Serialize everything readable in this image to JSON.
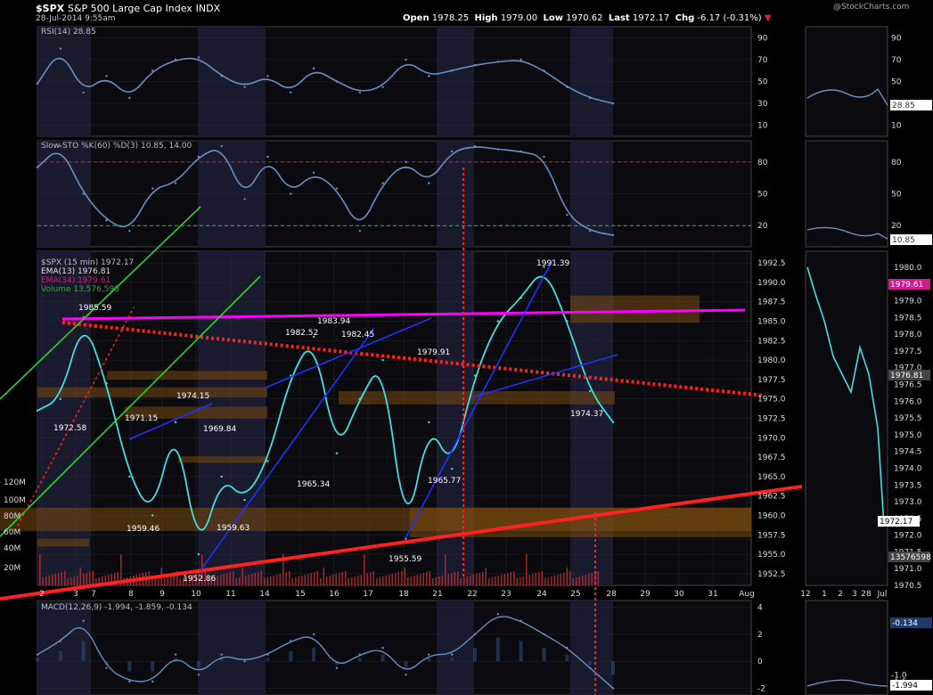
{
  "header": {
    "symbol": "$SPX",
    "name": "S&P 500 Large Cap Index",
    "exchange": "INDX",
    "timestamp": "28-Jul-2014 9:55am",
    "open_label": "Open",
    "open": "1978.25",
    "high_label": "High",
    "high": "1979.00",
    "low_label": "Low",
    "low": "1970.62",
    "last_label": "Last",
    "last": "1972.17",
    "chg_label": "Chg",
    "chg": "-6.17 (-0.31%)",
    "watermark": "@StockCharts.com"
  },
  "colors": {
    "background": "#000000",
    "panel_bg": "#0a0a0f",
    "shade": "#1a1a2e",
    "grid": "#2a2a2a",
    "price": "#40e0e0",
    "rsi": "#6a8fbf",
    "ema13": "#e0e0e0",
    "ema34": "#d01c8b",
    "volume": "#c03030",
    "resistance": "#ff00ff",
    "support": "#ff2020",
    "channel": "#2030ff",
    "green": "#30d030",
    "zone": "#7a4a10"
  },
  "chart_data": [
    {
      "type": "line",
      "panel": "rsi",
      "title": "RSI(14) 28.85",
      "ylim": [
        0,
        100
      ],
      "yticks": [
        10,
        30,
        50,
        70,
        90
      ],
      "last_value": "28.85",
      "x": [
        0,
        7,
        14,
        21,
        28,
        35,
        42,
        49,
        56,
        63,
        70,
        77,
        84,
        91,
        98,
        105,
        112,
        119,
        126,
        133,
        140,
        147,
        154,
        161,
        168,
        175
      ],
      "values": [
        48,
        80,
        40,
        55,
        35,
        60,
        70,
        72,
        55,
        45,
        55,
        40,
        62,
        50,
        40,
        45,
        70,
        55,
        60,
        65,
        68,
        70,
        60,
        45,
        35,
        30
      ]
    },
    {
      "type": "line",
      "panel": "stochastic",
      "title": "Slow STO %K(60) %D(3) 10.85, 14.00",
      "ylim": [
        0,
        100
      ],
      "yticks": [
        20,
        50,
        80
      ],
      "last_values": [
        "10.85",
        "14.00"
      ],
      "x": [
        0,
        7,
        14,
        21,
        28,
        35,
        42,
        49,
        56,
        63,
        70,
        77,
        84,
        91,
        98,
        105,
        112,
        119,
        126,
        133,
        140,
        147,
        154,
        161,
        168,
        175
      ],
      "values": [
        75,
        95,
        50,
        25,
        15,
        55,
        60,
        85,
        95,
        45,
        85,
        50,
        70,
        55,
        15,
        60,
        80,
        60,
        90,
        95,
        92,
        90,
        85,
        30,
        15,
        11
      ]
    },
    {
      "type": "line",
      "panel": "price",
      "title": "$SPX (15 min) 1972.17",
      "legend": [
        "EMA(13) 1976.81",
        "EMA(34) 1979.61",
        "Volume 13,576,598"
      ],
      "ylim": [
        1951,
        1994
      ],
      "yticks": [
        1952.5,
        1955.0,
        1957.5,
        1960.0,
        1962.5,
        1965.0,
        1967.5,
        1970.0,
        1972.5,
        1975.0,
        1977.5,
        1980.0,
        1982.5,
        1985.0,
        1987.5,
        1990.0,
        1992.5
      ],
      "volume_ticks": [
        "20M",
        "40M",
        "60M",
        "80M",
        "100M",
        "120M"
      ],
      "x_labels": [
        "2",
        "3",
        "7",
        "8",
        "9",
        "10",
        "11",
        "14",
        "15",
        "16",
        "17",
        "18",
        "21",
        "22",
        "23",
        "24",
        "25",
        "28",
        "29",
        "30",
        "31",
        "Aug"
      ],
      "x": [
        0,
        7,
        14,
        21,
        28,
        35,
        42,
        49,
        56,
        63,
        70,
        77,
        84,
        91,
        98,
        105,
        112,
        119,
        126,
        133,
        140,
        147,
        154,
        161,
        168,
        175
      ],
      "values": [
        1973.5,
        1975,
        1985.5,
        1977,
        1965,
        1960,
        1972,
        1955,
        1965,
        1962,
        1967,
        1978,
        1983,
        1968,
        1975,
        1980,
        1957,
        1972,
        1966,
        1978,
        1985,
        1988,
        1992,
        1985,
        1976,
        1972
      ],
      "annotations": [
        "1985.59",
        "1972.58",
        "1971.15",
        "1974.15",
        "1969.84",
        "1959.46",
        "1959.63",
        "1952.86",
        "1965.34",
        "1982.52",
        "1983.94",
        "1982.45",
        "1979.91",
        "1955.59",
        "1965.77",
        "1991.39",
        "1974.37"
      ],
      "right_labels": [
        "1979.61",
        "1976.81",
        "1972.17",
        "13576598"
      ]
    },
    {
      "type": "line",
      "panel": "macd",
      "title": "MACD(12,26,9) -1.994, -1.859, -0.134",
      "ylim": [
        -2.5,
        4.5
      ],
      "yticks": [
        -2,
        0,
        2,
        4
      ],
      "right_labels": [
        "-0.134",
        "-1.994"
      ],
      "mini_ticks": [
        "-1.5",
        "-1.0"
      ],
      "x": [
        0,
        7,
        14,
        21,
        28,
        35,
        42,
        49,
        56,
        63,
        70,
        77,
        84,
        91,
        98,
        105,
        112,
        119,
        126,
        133,
        140,
        147,
        154,
        161,
        168,
        175
      ],
      "values": [
        0.5,
        1.5,
        3.0,
        -0.5,
        -1.5,
        -1.5,
        0.5,
        -1.0,
        0.5,
        0,
        0.5,
        1.5,
        2.0,
        -0.5,
        0.5,
        1.0,
        -1.0,
        0.5,
        0.5,
        2.0,
        3.5,
        3.0,
        2.0,
        1.0,
        -0.5,
        -2.0
      ]
    },
    {
      "type": "line",
      "panel": "mini-daily",
      "x_labels": [
        "12",
        "1",
        "2",
        "3",
        "28",
        "Jul"
      ],
      "yticks": [
        1970.5,
        1971.0,
        1971.5,
        1972.0,
        1972.5,
        1973.0,
        1973.5,
        1974.0,
        1974.5,
        1975.0,
        1975.5,
        1976.0,
        1976.5,
        1977.0,
        1977.5,
        1978.0,
        1978.5,
        1979.0,
        1979.5,
        1980.0
      ]
    }
  ]
}
